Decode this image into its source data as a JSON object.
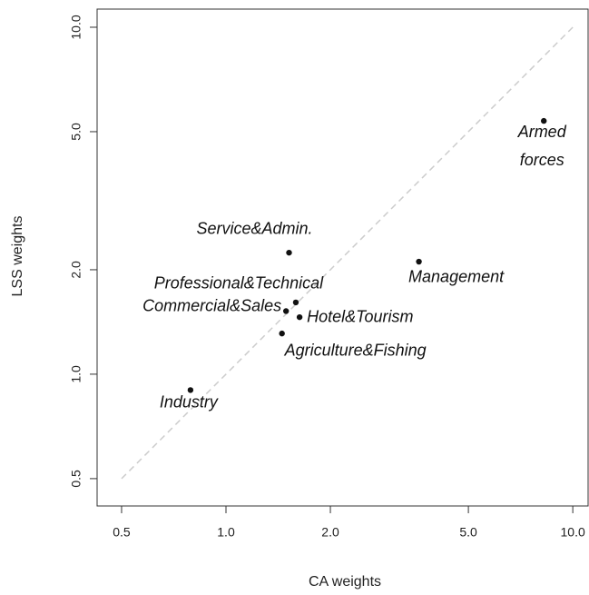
{
  "chart_data": {
    "type": "scatter",
    "x_label": "CA weights",
    "y_label": "LSS weights",
    "log_x": true,
    "log_y": true,
    "xlim": [
      0.425,
      11.07
    ],
    "ylim": [
      0.417,
      11.28
    ],
    "xticks": [
      0.5,
      {
        "value": 1,
        "label": "1.0"
      },
      {
        "value": 2,
        "label": "2.0"
      },
      {
        "value": 5,
        "label": "5.0"
      },
      {
        "value": 10,
        "label": "10.0"
      }
    ],
    "yticks": [
      0.5,
      {
        "value": 1,
        "label": "1.0"
      },
      {
        "value": 2,
        "label": "2.0"
      },
      {
        "value": 5,
        "label": "5.0"
      },
      {
        "value": 10,
        "label": "10.0"
      }
    ],
    "color": "#111111",
    "reference_line": {
      "x": [
        0.5,
        10
      ],
      "y": [
        0.5,
        10
      ],
      "color": "#cccccc"
    },
    "labels": [
      "Armed forces",
      "Management",
      "Service&Admin.",
      "Professional&Technical",
      "Commercial&Sales",
      "Hotel&Tourism",
      "Agriculture&Fishing",
      "Industry"
    ],
    "x": [
      8.25,
      3.6,
      1.52,
      1.59,
      1.49,
      1.63,
      1.45,
      0.79
    ],
    "y": [
      5.37,
      2.11,
      2.24,
      1.61,
      1.52,
      1.46,
      1.31,
      0.9
    ]
  }
}
